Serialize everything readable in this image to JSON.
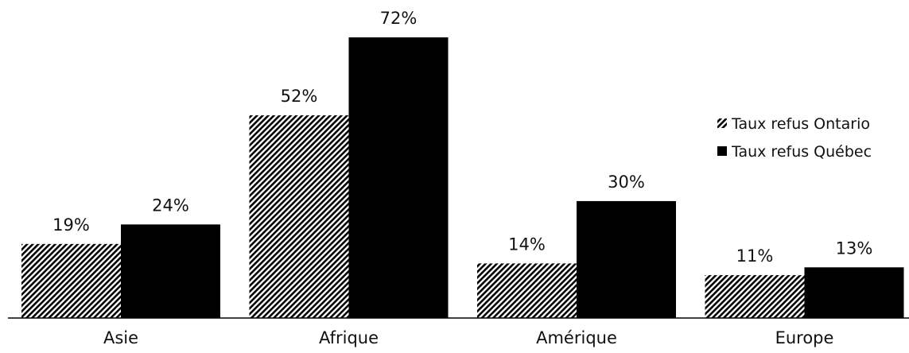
{
  "chart_data": {
    "type": "bar",
    "title": "",
    "xlabel": "",
    "ylabel": "",
    "categories": [
      "Asie",
      "Afrique",
      "Amérique",
      "Europe"
    ],
    "series": [
      {
        "name": "Taux refus Ontario",
        "values": [
          19,
          52,
          14,
          11
        ],
        "labels": [
          "19%",
          "52%",
          "14%",
          "11%"
        ],
        "fill": "hatched",
        "color": "#000000"
      },
      {
        "name": "Taux refus Québec",
        "values": [
          24,
          72,
          30,
          13
        ],
        "labels": [
          "24%",
          "72%",
          "30%",
          "13%"
        ],
        "fill": "solid",
        "color": "#000000"
      }
    ],
    "ylim": [
      0,
      72
    ],
    "grid": false,
    "y_axis_visible": false,
    "legend_position": "right"
  }
}
